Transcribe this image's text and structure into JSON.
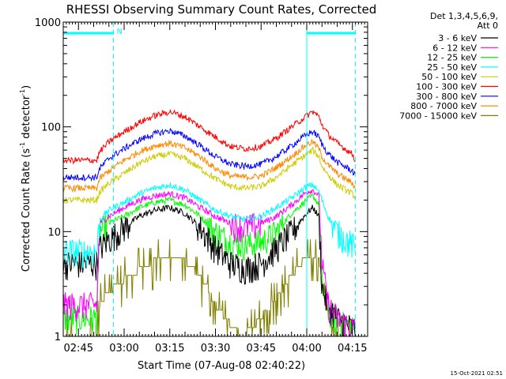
{
  "chart_data": {
    "type": "line",
    "title": "RHESSI Observing Summary Count Rates, Corrected",
    "xlabel": "Start Time (07-Aug-08 02:40:22)",
    "ylabel_main": "Corrected Count Rate (s",
    "ylabel_mid": " detector",
    "ylabel_end": ")",
    "ylabel_exp": "-1",
    "yscale": "log",
    "ylim": [
      1,
      1000
    ],
    "ytick_labels": [
      "1",
      "10",
      "100",
      "1000"
    ],
    "ytick_values": [
      1,
      10,
      100,
      1000
    ],
    "xlim_minutes": [
      0,
      100
    ],
    "xtick_labels": [
      "02:45",
      "03:00",
      "03:15",
      "03:30",
      "03:45",
      "04:00",
      "04:15"
    ],
    "xtick_minutes": [
      5,
      20,
      35,
      50,
      65,
      80,
      95
    ],
    "grid": false,
    "legend_position": "right",
    "legend_header": [
      "Det 1,3,4,5,6,9,",
      "Att 0"
    ],
    "flag_label": "N",
    "cyan_vlines_minutes": [
      0,
      16.5,
      80,
      96
    ],
    "timestamp": "15-Oct-2021 02:51",
    "series": [
      {
        "name": "3 - 6 keV",
        "color": "#000000",
        "x": [
          0,
          11,
          12,
          15,
          20,
          25,
          30,
          35,
          40,
          45,
          50,
          55,
          60,
          65,
          70,
          75,
          80,
          82,
          84,
          85,
          87,
          90,
          95,
          96
        ],
        "y": [
          5,
          5,
          7,
          8.5,
          11,
          14,
          16,
          17,
          15,
          11,
          7,
          5,
          4.5,
          5,
          7,
          10,
          15,
          17,
          14,
          3,
          2,
          1.5,
          1.2,
          1.2
        ]
      },
      {
        "name": "6 - 12 keV",
        "color": "#ff00ff",
        "x": [
          0,
          11,
          12,
          15,
          20,
          25,
          30,
          35,
          40,
          45,
          50,
          55,
          60,
          65,
          70,
          75,
          80,
          82,
          84,
          85,
          87,
          90,
          95,
          96
        ],
        "y": [
          2,
          2,
          12,
          14,
          17,
          20,
          22,
          23,
          21,
          17,
          14,
          12,
          11,
          12,
          14,
          18,
          24,
          25,
          22,
          5,
          2,
          1.5,
          1.2,
          1.2
        ]
      },
      {
        "name": "12 - 25 keV",
        "color": "#00ff00",
        "x": [
          0,
          11,
          12,
          15,
          20,
          25,
          30,
          35,
          40,
          45,
          50,
          55,
          60,
          65,
          70,
          75,
          80,
          82,
          84,
          85,
          87,
          90,
          95,
          96
        ],
        "y": [
          1.5,
          1.5,
          10,
          12,
          14,
          17,
          19,
          20,
          18,
          14,
          10,
          8,
          7.5,
          8,
          10,
          15,
          20,
          22,
          18,
          3,
          1.8,
          1.4,
          1.2,
          1.2
        ]
      },
      {
        "name": "25 - 50 keV",
        "color": "#00ffff",
        "x": [
          0,
          11,
          12,
          15,
          20,
          25,
          30,
          35,
          40,
          45,
          50,
          55,
          60,
          65,
          70,
          75,
          80,
          82,
          84,
          85,
          87,
          90,
          95,
          96
        ],
        "y": [
          6.5,
          6.5,
          13,
          16,
          19,
          23,
          26,
          28,
          25,
          20,
          16,
          14,
          13,
          14,
          17,
          21,
          27,
          28,
          24,
          20,
          14,
          10,
          7.5,
          6.5
        ]
      },
      {
        "name": "50 - 100 keV",
        "color": "#cccc00",
        "x": [
          0,
          11,
          12,
          15,
          20,
          25,
          30,
          35,
          40,
          45,
          50,
          55,
          60,
          65,
          70,
          75,
          80,
          82,
          84,
          85,
          87,
          90,
          95,
          96
        ],
        "y": [
          20,
          20,
          24,
          29,
          36,
          45,
          52,
          55,
          50,
          40,
          32,
          27,
          26,
          27,
          33,
          43,
          55,
          60,
          52,
          42,
          35,
          28,
          23,
          21
        ]
      },
      {
        "name": "100 - 300 keV",
        "color": "#ff0000",
        "x": [
          0,
          11,
          12,
          15,
          20,
          25,
          30,
          35,
          40,
          45,
          50,
          55,
          60,
          65,
          70,
          75,
          80,
          82,
          84,
          85,
          87,
          90,
          95,
          96
        ],
        "y": [
          48,
          48,
          58,
          72,
          90,
          110,
          128,
          140,
          125,
          100,
          80,
          65,
          62,
          65,
          78,
          100,
          128,
          140,
          125,
          105,
          85,
          70,
          55,
          48
        ]
      },
      {
        "name": "300 - 800 keV",
        "color": "#0000ff",
        "x": [
          0,
          11,
          12,
          15,
          20,
          25,
          30,
          35,
          40,
          45,
          50,
          55,
          60,
          65,
          70,
          75,
          80,
          82,
          84,
          85,
          87,
          90,
          95,
          96
        ],
        "y": [
          33,
          33,
          40,
          50,
          62,
          75,
          86,
          92,
          82,
          66,
          52,
          44,
          42,
          44,
          52,
          66,
          85,
          90,
          80,
          68,
          56,
          46,
          38,
          34
        ]
      },
      {
        "name": "800 - 7000 keV",
        "color": "#ff8800",
        "x": [
          0,
          11,
          12,
          15,
          20,
          25,
          30,
          35,
          40,
          45,
          50,
          55,
          60,
          65,
          70,
          75,
          80,
          82,
          84,
          85,
          87,
          90,
          95,
          96
        ],
        "y": [
          26,
          26,
          32,
          38,
          48,
          58,
          66,
          70,
          63,
          52,
          40,
          34,
          33,
          34,
          41,
          52,
          68,
          72,
          62,
          52,
          43,
          36,
          29,
          26
        ]
      },
      {
        "name": "7000 - 15000 keV",
        "color": "#808000",
        "x": [
          0,
          11,
          12,
          14,
          17,
          20,
          23,
          26,
          29,
          32,
          35,
          38,
          41,
          44,
          47,
          50,
          53,
          56,
          59,
          62,
          65,
          68,
          71,
          74,
          77,
          80,
          82,
          84,
          86,
          90,
          95,
          96
        ],
        "y": [
          1,
          1,
          2,
          2.5,
          3,
          3.5,
          4,
          4.5,
          5,
          5.5,
          6,
          5.5,
          5,
          4,
          3,
          2,
          1.5,
          1.2,
          1,
          1.2,
          1.5,
          2,
          2.5,
          3.5,
          4.5,
          6,
          6,
          5.5,
          2,
          1,
          1,
          1
        ]
      }
    ]
  }
}
